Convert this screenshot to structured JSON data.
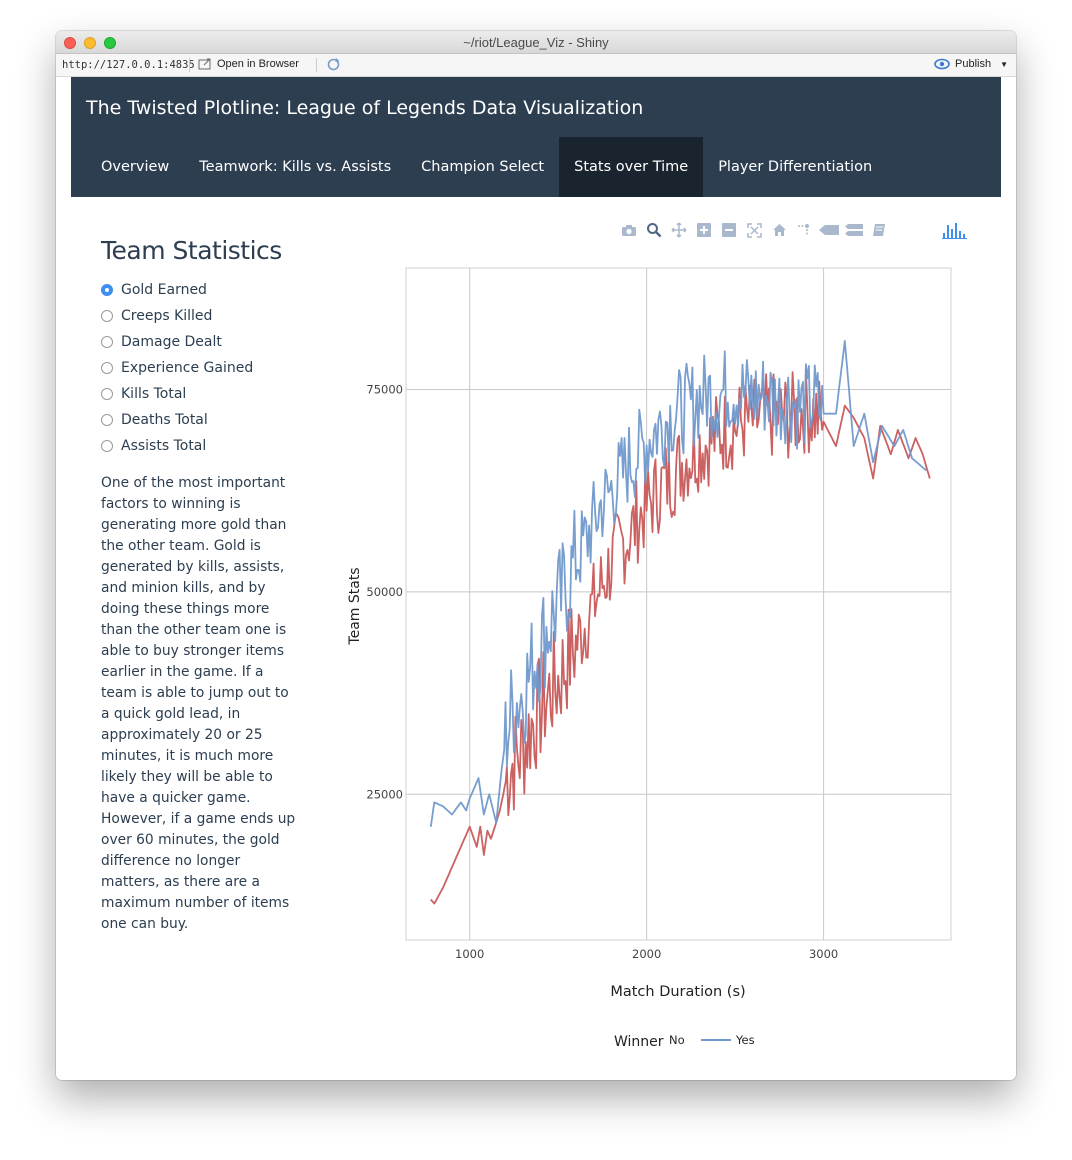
{
  "window": {
    "title": "~/riot/League_Viz - Shiny",
    "url": "http://127.0.0.1:4835",
    "open_in_browser": "Open in Browser",
    "publish": "Publish"
  },
  "navbar": {
    "brand": "The Twisted Plotline: League of Legends Data Visualization",
    "tabs": [
      {
        "label": "Overview"
      },
      {
        "label": "Teamwork: Kills vs. Assists"
      },
      {
        "label": "Champion Select"
      },
      {
        "label": "Stats over Time"
      },
      {
        "label": "Player Differentiation"
      }
    ],
    "active_tab": "Stats over Time"
  },
  "sidebar": {
    "title": "Team Statistics",
    "options": [
      {
        "label": "Gold Earned",
        "checked": true
      },
      {
        "label": "Creeps Killed",
        "checked": false
      },
      {
        "label": "Damage Dealt",
        "checked": false
      },
      {
        "label": "Experience Gained",
        "checked": false
      },
      {
        "label": "Kills Total",
        "checked": false
      },
      {
        "label": "Deaths Total",
        "checked": false
      },
      {
        "label": "Assists Total",
        "checked": false
      }
    ],
    "description": "One of the most important factors to winning is generating more gold than the other team. Gold is generated by kills, assists, and minion kills, and by doing these things more than the other team one is able to buy stronger items earlier in the game. If a team is able to jump out to a quick gold lead, in approximately 20 or 25 minutes, it is much more likely they will be able to have a quicker game. However, if a game ends up over 60 minutes, the gold difference no longer matters, as there are a maximum number of items one can buy."
  },
  "plot_toolbar": {
    "icons": [
      "camera-icon",
      "zoom-icon",
      "pan-icon",
      "zoom-in-icon",
      "zoom-out-icon",
      "autoscale-icon",
      "reset-axes-icon",
      "spike-lines-icon",
      "hover-closest-icon",
      "hover-compare-icon",
      "edit-chart-icon"
    ],
    "logo": "plotly-logo-icon"
  },
  "colors": {
    "navbar": "#2c3e50",
    "active_tab": "#1a242f",
    "yes": "#7099cc",
    "no": "#c9585a"
  },
  "chart_data": {
    "type": "line",
    "title": "",
    "xlabel": "Match Duration (s)",
    "ylabel": "Team Stats",
    "xlim": [
      640,
      3720
    ],
    "ylim": [
      7000,
      90000
    ],
    "x_ticks": [
      1000,
      2000,
      3000
    ],
    "y_ticks": [
      25000,
      50000,
      75000
    ],
    "grid": true,
    "legend": {
      "title": "Winner",
      "placement": "bottom"
    },
    "series": [
      {
        "name": "No",
        "color": "#c9585a",
        "x": [
          780,
          800,
          850,
          900,
          950,
          1000,
          1040,
          1060,
          1080,
          1100,
          1120,
          1150,
          1170,
          1190,
          1210,
          1250,
          1300,
          1350,
          1400,
          1450,
          1500,
          1550,
          1600,
          1650,
          1700,
          1750,
          1800,
          1850,
          1900,
          1950,
          2000,
          2050,
          2100,
          2150,
          2200,
          2250,
          2300,
          2350,
          2400,
          2450,
          2500,
          2550,
          2600,
          2650,
          2700,
          2750,
          2800,
          2850,
          2900,
          2950,
          3000,
          3070,
          3120,
          3170,
          3230,
          3280,
          3320,
          3380,
          3420,
          3480,
          3520,
          3560,
          3600
        ],
        "y": [
          12000,
          11500,
          13500,
          16000,
          18500,
          21000,
          18500,
          21000,
          17500,
          20500,
          19500,
          21500,
          23000,
          25000,
          27500,
          29000,
          30500,
          33500,
          35500,
          37500,
          39000,
          41500,
          43500,
          46000,
          48500,
          51000,
          53500,
          55500,
          57000,
          59000,
          60500,
          62000,
          63500,
          64500,
          66000,
          67000,
          68000,
          68500,
          69500,
          70000,
          70500,
          71000,
          71000,
          71500,
          71500,
          72000,
          71500,
          72000,
          72500,
          72000,
          71000,
          68000,
          73000,
          71500,
          69000,
          64000,
          70500,
          67000,
          70000,
          66500,
          69000,
          67000,
          64000
        ]
      },
      {
        "name": "Yes",
        "color": "#7099cc",
        "x": [
          780,
          800,
          850,
          900,
          950,
          980,
          1000,
          1050,
          1080,
          1110,
          1150,
          1180,
          1210,
          1250,
          1300,
          1350,
          1400,
          1450,
          1500,
          1550,
          1600,
          1650,
          1700,
          1750,
          1800,
          1850,
          1900,
          1950,
          2000,
          2050,
          2100,
          2150,
          2200,
          2250,
          2300,
          2350,
          2400,
          2450,
          2500,
          2550,
          2600,
          2650,
          2700,
          2750,
          2800,
          2850,
          2900,
          2950,
          3000,
          3070,
          3120,
          3170,
          3230,
          3280,
          3330,
          3400,
          3450,
          3500,
          3580
        ],
        "y": [
          21000,
          24000,
          23500,
          22500,
          24000,
          23000,
          24500,
          27000,
          22500,
          25000,
          21500,
          28000,
          33000,
          36000,
          37500,
          40500,
          43500,
          46000,
          48500,
          51000,
          54000,
          56000,
          58500,
          61000,
          62500,
          64000,
          66000,
          67000,
          68500,
          70000,
          71000,
          72000,
          72500,
          73000,
          74000,
          74500,
          74000,
          75000,
          75000,
          74500,
          74000,
          74500,
          74000,
          73500,
          74000,
          73000,
          73000,
          73500,
          72000,
          72000,
          81000,
          68000,
          72000,
          66000,
          70500,
          68000,
          70000,
          66500,
          65000
        ]
      }
    ],
    "noise_amplitude_note": ""
  }
}
